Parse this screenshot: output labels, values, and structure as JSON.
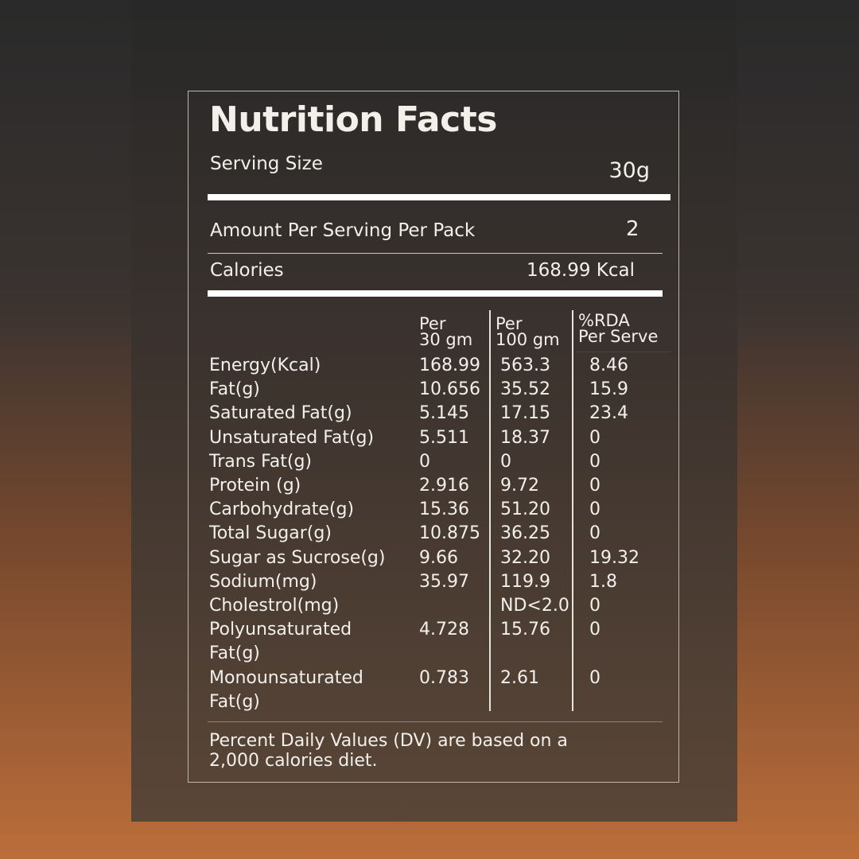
{
  "title": "Nutrition Facts",
  "serving": {
    "label": "Serving Size",
    "value": "30g"
  },
  "per_pack": {
    "label": "Amount Per Serving Per Pack",
    "value": "2"
  },
  "calories": {
    "label": "Calories",
    "value": "168.99 Kcal"
  },
  "headers": [
    [
      "Per",
      "30 gm"
    ],
    [
      "Per",
      "100 gm"
    ],
    [
      "%RDA",
      "Per Serve"
    ]
  ],
  "rows": [
    [
      "Energy(Kcal)",
      "168.99",
      "563.3",
      "8.46"
    ],
    [
      "Fat(g)",
      "10.656",
      "35.52",
      "15.9"
    ],
    [
      "Saturated Fat(g)",
      "5.145",
      "17.15",
      "23.4"
    ],
    [
      "Unsaturated Fat(g)",
      "5.511",
      "18.37",
      "0"
    ],
    [
      "Trans Fat(g)",
      "0",
      "0",
      "0"
    ],
    [
      "Protein (g)",
      "2.916",
      "9.72",
      "0"
    ],
    [
      "Carbohydrate(g)",
      "15.36",
      "51.20",
      "0"
    ],
    [
      "Total Sugar(g)",
      "10.875",
      "36.25",
      "0"
    ],
    [
      "Sugar as Sucrose(g)",
      "9.66",
      "32.20",
      "19.32"
    ],
    [
      "Sodium(mg)",
      "35.97",
      "119.9",
      "1.8"
    ],
    [
      "Cholestrol(mg)",
      "",
      "ND<2.0",
      "0"
    ],
    [
      "Polyunsaturated",
      "4.728",
      "15.76",
      "0"
    ],
    [
      "Fat(g)",
      "",
      "",
      ""
    ],
    [
      "Monounsaturated",
      "0.783",
      "2.61",
      "0"
    ],
    [
      "Fat(g)",
      "",
      "",
      ""
    ]
  ],
  "footnote": [
    "Percent Daily Values (DV) are based on a",
    "2,000 calories diet."
  ]
}
